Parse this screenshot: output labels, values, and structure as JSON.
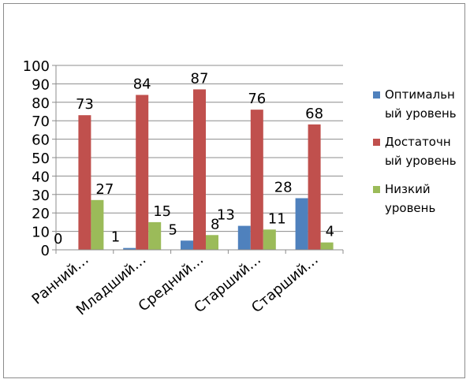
{
  "chart_data": {
    "type": "bar",
    "categories": [
      "Ранний…",
      "Младший…",
      "Средний…",
      "Старший…",
      "Старший…"
    ],
    "series": [
      {
        "name": "Оптимальный уровень",
        "legend_lines": [
          "Оптимальн",
          "ый уровень"
        ],
        "color": "#4f81bd",
        "values": [
          0,
          1,
          5,
          13,
          28
        ]
      },
      {
        "name": "Достаточный уровень",
        "legend_lines": [
          "Достаточн",
          "ый уровень"
        ],
        "color": "#c0504d",
        "values": [
          73,
          84,
          87,
          76,
          68
        ]
      },
      {
        "name": "Низкий уровень",
        "legend_lines": [
          "Низкий",
          "уровень"
        ],
        "color": "#9bbb59",
        "values": [
          27,
          15,
          8,
          11,
          4
        ]
      }
    ],
    "ylim": [
      0,
      100
    ],
    "yticks": [
      0,
      10,
      20,
      30,
      40,
      50,
      60,
      70,
      80,
      90,
      100
    ],
    "grid": true,
    "legend": "right",
    "data_labels": true
  }
}
